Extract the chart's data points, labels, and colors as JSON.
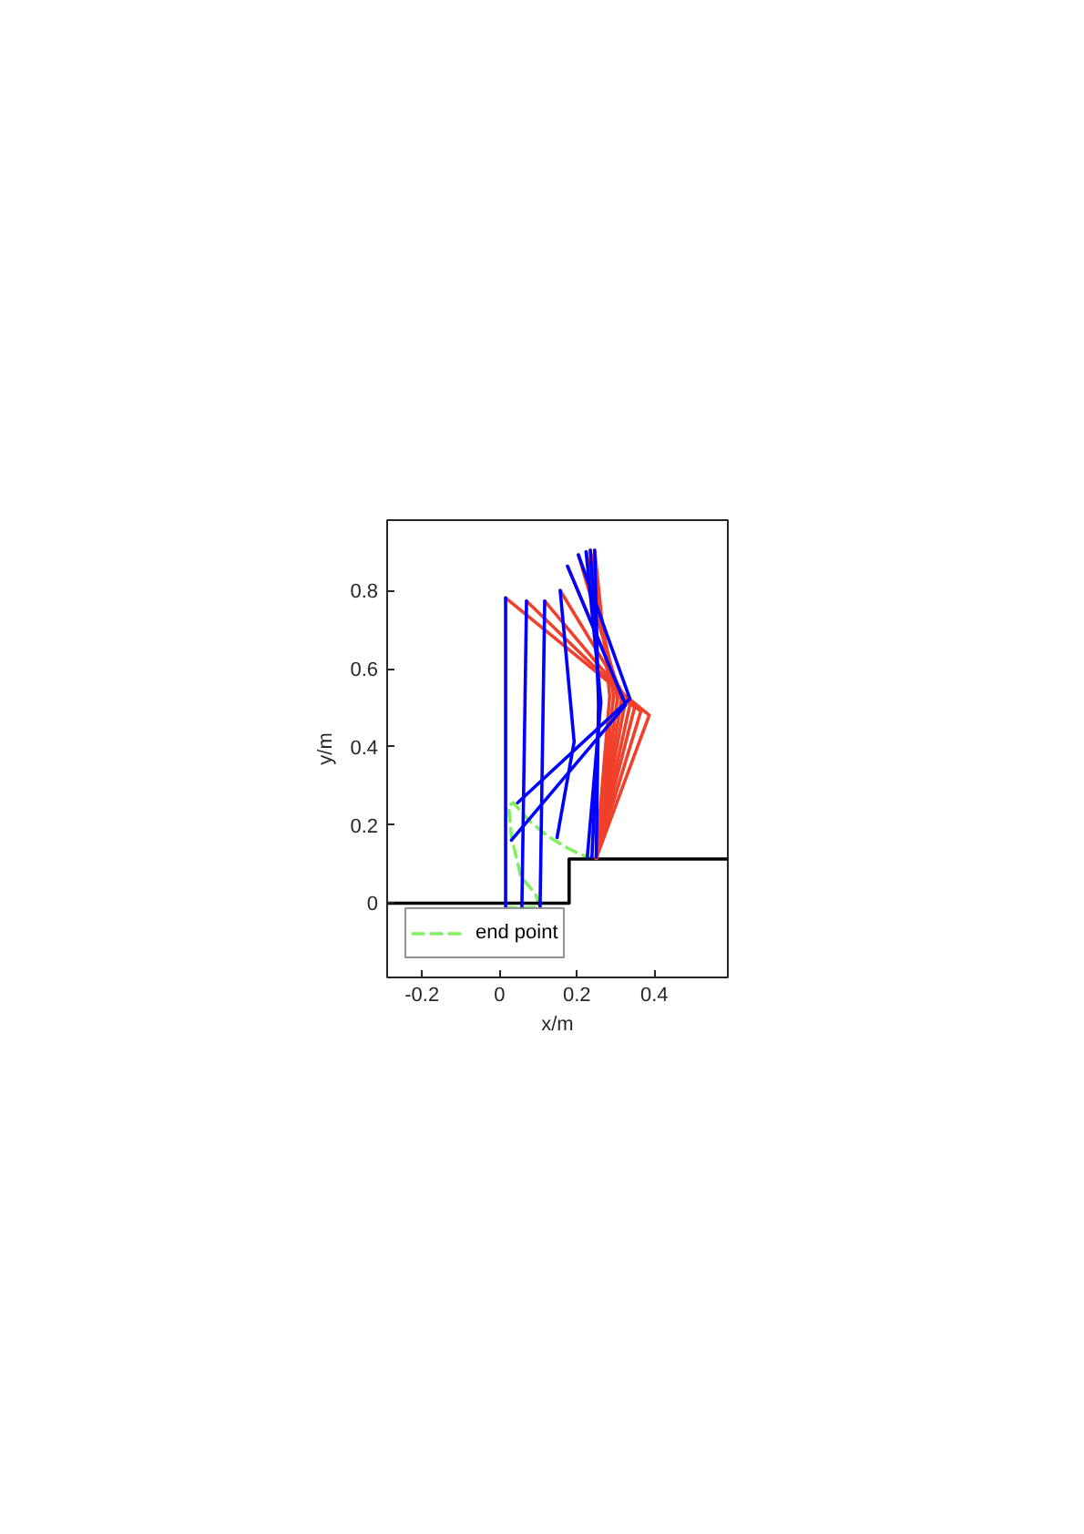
{
  "chart_data": {
    "type": "line",
    "xlabel": "x/m",
    "ylabel": "y/m",
    "xlim": [
      -0.29,
      0.59
    ],
    "ylim": [
      -0.19,
      0.98
    ],
    "xticks": [
      -0.2,
      0,
      0.2,
      0.4
    ],
    "yticks": [
      0,
      0.2,
      0.4,
      0.6,
      0.8
    ],
    "legend": "bottom left",
    "series": [
      {
        "name": "end point",
        "color": "#80f060",
        "line_style": "dashed",
        "x": [
          0.016,
          0.058,
          0.105,
          0.094,
          0.055,
          0.031,
          0.024,
          0.036,
          0.078,
          0.125,
          0.18,
          0.211,
          0.235
        ],
        "values": [
          -0.011,
          -0.012,
          -0.01,
          0.022,
          0.069,
          0.171,
          0.249,
          0.257,
          0.21,
          0.171,
          0.139,
          0.124,
          0.116
        ]
      },
      {
        "color": "#000000",
        "x": [
          -0.29,
          0.18,
          0.18,
          0.59
        ],
        "values": [
          0,
          0,
          0.113,
          0.113
        ]
      },
      {
        "color": "#f0402a",
        "x": [
          0.016,
          0.387,
          0.25
        ],
        "values": [
          0.781,
          0.481,
          0.115
        ]
      },
      {
        "color": "#f0402a",
        "x": [
          0.07,
          0.365,
          0.25
        ],
        "values": [
          0.773,
          0.49,
          0.115
        ]
      },
      {
        "color": "#f0402a",
        "x": [
          0.117,
          0.349,
          0.25
        ],
        "values": [
          0.773,
          0.5,
          0.115
        ]
      },
      {
        "color": "#f0402a",
        "x": [
          0.157,
          0.337,
          0.25
        ],
        "values": [
          0.8,
          0.507,
          0.115
        ]
      },
      {
        "color": "#f0402a",
        "x": [
          0.176,
          0.325,
          0.25
        ],
        "values": [
          0.862,
          0.515,
          0.115
        ]
      },
      {
        "color": "#f0402a",
        "x": [
          0.204,
          0.315,
          0.25
        ],
        "values": [
          0.891,
          0.52,
          0.115
        ]
      },
      {
        "color": "#f0402a",
        "x": [
          0.224,
          0.305,
          0.25
        ],
        "values": [
          0.899,
          0.525,
          0.115
        ]
      },
      {
        "color": "#f0402a",
        "x": [
          0.235,
          0.295,
          0.25
        ],
        "values": [
          0.903,
          0.53,
          0.115
        ]
      },
      {
        "color": "#f0402a",
        "x": [
          0.246,
          0.285,
          0.25
        ],
        "values": [
          0.903,
          0.53,
          0.115
        ]
      },
      {
        "color": "#0000ff",
        "x": [
          0.016,
          0.016
        ],
        "values": [
          0.781,
          -0.009
        ]
      },
      {
        "color": "#0000ff",
        "x": [
          0.07,
          0.058
        ],
        "values": [
          0.773,
          -0.012
        ]
      },
      {
        "color": "#0000ff",
        "x": [
          0.117,
          0.105
        ],
        "values": [
          0.773,
          -0.012
        ]
      },
      {
        "color": "#0000ff",
        "x": [
          0.157,
          0.193,
          0.149
        ],
        "values": [
          0.8,
          0.413,
          0.168
        ]
      },
      {
        "color": "#0000ff",
        "x": [
          0.176,
          0.326,
          0.031
        ],
        "values": [
          0.862,
          0.507,
          0.161
        ]
      },
      {
        "color": "#0000ff",
        "x": [
          0.204,
          0.337,
          0.047
        ],
        "values": [
          0.891,
          0.523,
          0.257
        ]
      },
      {
        "color": "#0000ff",
        "x": [
          0.224,
          0.262,
          0.227
        ],
        "values": [
          0.899,
          0.515,
          0.118
        ]
      },
      {
        "color": "#0000ff",
        "x": [
          0.235,
          0.258,
          0.239
        ],
        "values": [
          0.903,
          0.51,
          0.118
        ]
      },
      {
        "color": "#0000ff",
        "x": [
          0.246,
          0.256,
          0.25
        ],
        "values": [
          0.903,
          0.505,
          0.118
        ]
      }
    ]
  }
}
